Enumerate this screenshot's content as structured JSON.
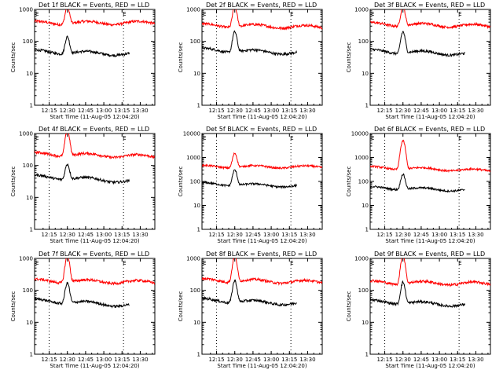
{
  "chart_data": [
    {
      "type": "line",
      "title": "Det 1f BLACK = Events, RED = LLD",
      "xlabel": "Start Time (11-Aug-05 12:04:20)",
      "ylabel": "Counts/sec",
      "yscale": "log",
      "ylim": [
        1,
        1000
      ],
      "xlim": [
        12.05,
        13.7
      ],
      "x_ticks": [
        "12:15",
        "12:30",
        "12:45",
        "13:00",
        "13:15",
        "13:30"
      ],
      "y_ticks": [
        "1",
        "10",
        "100",
        "1000"
      ],
      "markers": [
        "E",
        "E"
      ],
      "vlines": [
        12.25,
        13.27
      ],
      "peak_time": 12.5,
      "series": [
        {
          "color": "#ff0000",
          "base_start": 380,
          "base_end": 380,
          "peak": 1200
        },
        {
          "color": "#000000",
          "base_start": 48,
          "base_end": 38,
          "peak": 140,
          "end_time": 13.35
        }
      ]
    },
    {
      "type": "line",
      "title": "Det 2f BLACK = Events, RED = LLD",
      "xlabel": "Start Time (11-Aug-05 12:04:20)",
      "ylabel": "Counts/sec",
      "yscale": "log",
      "ylim": [
        1,
        1000
      ],
      "xlim": [
        12.05,
        13.7
      ],
      "x_ticks": [
        "12:15",
        "12:30",
        "12:45",
        "13:00",
        "13:15",
        "13:30"
      ],
      "y_ticks": [
        "1",
        "10",
        "100",
        "1000"
      ],
      "markers": [
        "E",
        "E"
      ],
      "vlines": [
        12.25,
        13.27
      ],
      "peak_time": 12.5,
      "series": [
        {
          "color": "#ff0000",
          "base_start": 320,
          "base_end": 280,
          "peak": 1200
        },
        {
          "color": "#000000",
          "base_start": 55,
          "base_end": 40,
          "peak": 200,
          "end_time": 13.35
        }
      ]
    },
    {
      "type": "line",
      "title": "Det 3f BLACK = Events, RED = LLD",
      "xlabel": "Start Time (11-Aug-05 12:04:20)",
      "ylabel": "Counts/sec",
      "yscale": "log",
      "ylim": [
        1,
        1000
      ],
      "xlim": [
        12.05,
        13.7
      ],
      "x_ticks": [
        "12:15",
        "12:30",
        "12:45",
        "13:00",
        "13:15",
        "13:30"
      ],
      "y_ticks": [
        "1",
        "10",
        "100",
        "1000"
      ],
      "markers": [
        "E",
        "E"
      ],
      "vlines": [
        12.25,
        13.27
      ],
      "peak_time": 12.5,
      "series": [
        {
          "color": "#ff0000",
          "base_start": 350,
          "base_end": 300,
          "peak": 1200
        },
        {
          "color": "#000000",
          "base_start": 50,
          "base_end": 38,
          "peak": 200,
          "end_time": 13.35
        }
      ]
    },
    {
      "type": "line",
      "title": "Det 4f BLACK = Events, RED = LLD",
      "xlabel": "Start Time (11-Aug-05 12:04:20)",
      "ylabel": "Counts/sec",
      "yscale": "log",
      "ylim": [
        1,
        1000
      ],
      "xlim": [
        12.05,
        13.7
      ],
      "x_ticks": [
        "12:15",
        "12:30",
        "12:45",
        "13:00",
        "13:15",
        "13:30"
      ],
      "y_ticks": [
        "1",
        "10",
        "100",
        "1000"
      ],
      "markers": [
        "E",
        "E"
      ],
      "vlines": [
        12.25,
        13.27
      ],
      "peak_time": 12.5,
      "series": [
        {
          "color": "#ff0000",
          "base_start": 230,
          "base_end": 190,
          "peak": 1200
        },
        {
          "color": "#000000",
          "base_start": 45,
          "base_end": 28,
          "peak": 110,
          "end_time": 13.35
        }
      ]
    },
    {
      "type": "line",
      "title": "Det 5f BLACK = Events, RED = LLD",
      "xlabel": "Start Time (11-Aug-05 12:04:20)",
      "ylabel": "Counts/sec",
      "yscale": "log",
      "ylim": [
        1,
        10000
      ],
      "xlim": [
        12.05,
        13.7
      ],
      "x_ticks": [
        "12:15",
        "12:30",
        "12:45",
        "13:00",
        "13:15",
        "13:30"
      ],
      "y_ticks": [
        "1",
        "10",
        "100",
        "1000",
        "10000"
      ],
      "markers": [
        "E",
        "E"
      ],
      "vlines": [
        12.25,
        13.27
      ],
      "peak_time": 12.5,
      "series": [
        {
          "color": "#ff0000",
          "base_start": 420,
          "base_end": 400,
          "peak": 1500
        },
        {
          "color": "#000000",
          "base_start": 80,
          "base_end": 60,
          "peak": 300,
          "end_time": 13.35
        }
      ]
    },
    {
      "type": "line",
      "title": "Det 6f BLACK = Events, RED = LLD",
      "xlabel": "Start Time (11-Aug-05 12:04:20)",
      "ylabel": "Counts/sec",
      "yscale": "log",
      "ylim": [
        1,
        10000
      ],
      "xlim": [
        12.05,
        13.7
      ],
      "x_ticks": [
        "12:15",
        "12:30",
        "12:45",
        "13:00",
        "13:15",
        "13:30"
      ],
      "y_ticks": [
        "1",
        "10",
        "100",
        "1000",
        "10000"
      ],
      "markers": [
        "E",
        "E"
      ],
      "vlines": [
        12.25,
        13.27
      ],
      "peak_time": 12.5,
      "series": [
        {
          "color": "#ff0000",
          "base_start": 380,
          "base_end": 280,
          "peak": 5000
        },
        {
          "color": "#000000",
          "base_start": 55,
          "base_end": 40,
          "peak": 200,
          "end_time": 13.35
        }
      ]
    },
    {
      "type": "line",
      "title": "Det 7f BLACK = Events, RED = LLD",
      "xlabel": "Start Time (11-Aug-05 12:04:20)",
      "ylabel": "Counts/sec",
      "yscale": "log",
      "ylim": [
        1,
        1000
      ],
      "xlim": [
        12.05,
        13.7
      ],
      "x_ticks": [
        "12:15",
        "12:30",
        "12:45",
        "13:00",
        "13:15",
        "13:30"
      ],
      "y_ticks": [
        "1",
        "10",
        "100",
        "1000"
      ],
      "markers": [
        "E",
        "E"
      ],
      "vlines": [
        12.25,
        13.27
      ],
      "peak_time": 12.5,
      "series": [
        {
          "color": "#ff0000",
          "base_start": 200,
          "base_end": 180,
          "peak": 1200
        },
        {
          "color": "#000000",
          "base_start": 48,
          "base_end": 30,
          "peak": 170,
          "end_time": 13.35
        }
      ]
    },
    {
      "type": "line",
      "title": "Det 8f BLACK = Events, RED = LLD",
      "xlabel": "Start Time (11-Aug-05 12:04:20)",
      "ylabel": "Counts/sec",
      "yscale": "log",
      "ylim": [
        1,
        1000
      ],
      "xlim": [
        12.05,
        13.7
      ],
      "x_ticks": [
        "12:15",
        "12:30",
        "12:45",
        "13:00",
        "13:15",
        "13:30"
      ],
      "y_ticks": [
        "1",
        "10",
        "100",
        "1000"
      ],
      "markers": [
        "E",
        "E"
      ],
      "vlines": [
        12.25,
        13.27
      ],
      "peak_time": 12.5,
      "series": [
        {
          "color": "#ff0000",
          "base_start": 210,
          "base_end": 180,
          "peak": 1200
        },
        {
          "color": "#000000",
          "base_start": 50,
          "base_end": 35,
          "peak": 200,
          "end_time": 13.35
        }
      ]
    },
    {
      "type": "line",
      "title": "Det 9f BLACK = Events, RED = LLD",
      "xlabel": "Start Time (11-Aug-05 12:04:20)",
      "ylabel": "Counts/sec",
      "yscale": "log",
      "ylim": [
        1,
        1000
      ],
      "xlim": [
        12.05,
        13.7
      ],
      "x_ticks": [
        "12:15",
        "12:30",
        "12:45",
        "13:00",
        "13:15",
        "13:30"
      ],
      "y_ticks": [
        "1",
        "10",
        "100",
        "1000"
      ],
      "markers": [
        "E",
        "E"
      ],
      "vlines": [
        12.25,
        13.27
      ],
      "peak_time": 12.5,
      "series": [
        {
          "color": "#ff0000",
          "base_start": 180,
          "base_end": 160,
          "peak": 1200
        },
        {
          "color": "#000000",
          "base_start": 45,
          "base_end": 32,
          "peak": 180,
          "end_time": 13.35
        }
      ]
    }
  ]
}
